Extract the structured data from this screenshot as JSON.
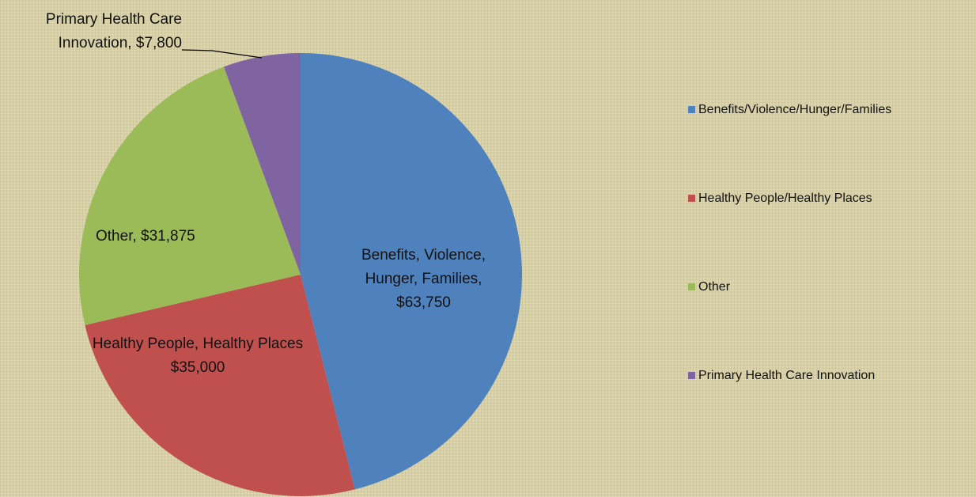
{
  "chart_data": {
    "type": "pie",
    "categories": [
      "Benefits/Violence/Hunger/Families",
      "Healthy People/Healthy Places",
      "Other",
      "Primary Health Care Innovation"
    ],
    "values": [
      63750,
      35000,
      31875,
      7800
    ],
    "value_labels": [
      "$63,750",
      "$35,000",
      "$31,875",
      "$7,800"
    ],
    "data_label_names": [
      "Benefits, Violence, Hunger, Families,",
      "Healthy People, Healthy Places",
      "Other,",
      "Primary Health Care Innovation,"
    ],
    "colors": [
      "#4f81bd",
      "#c0504d",
      "#9bbb59",
      "#8064a2"
    ],
    "legend": "right"
  }
}
